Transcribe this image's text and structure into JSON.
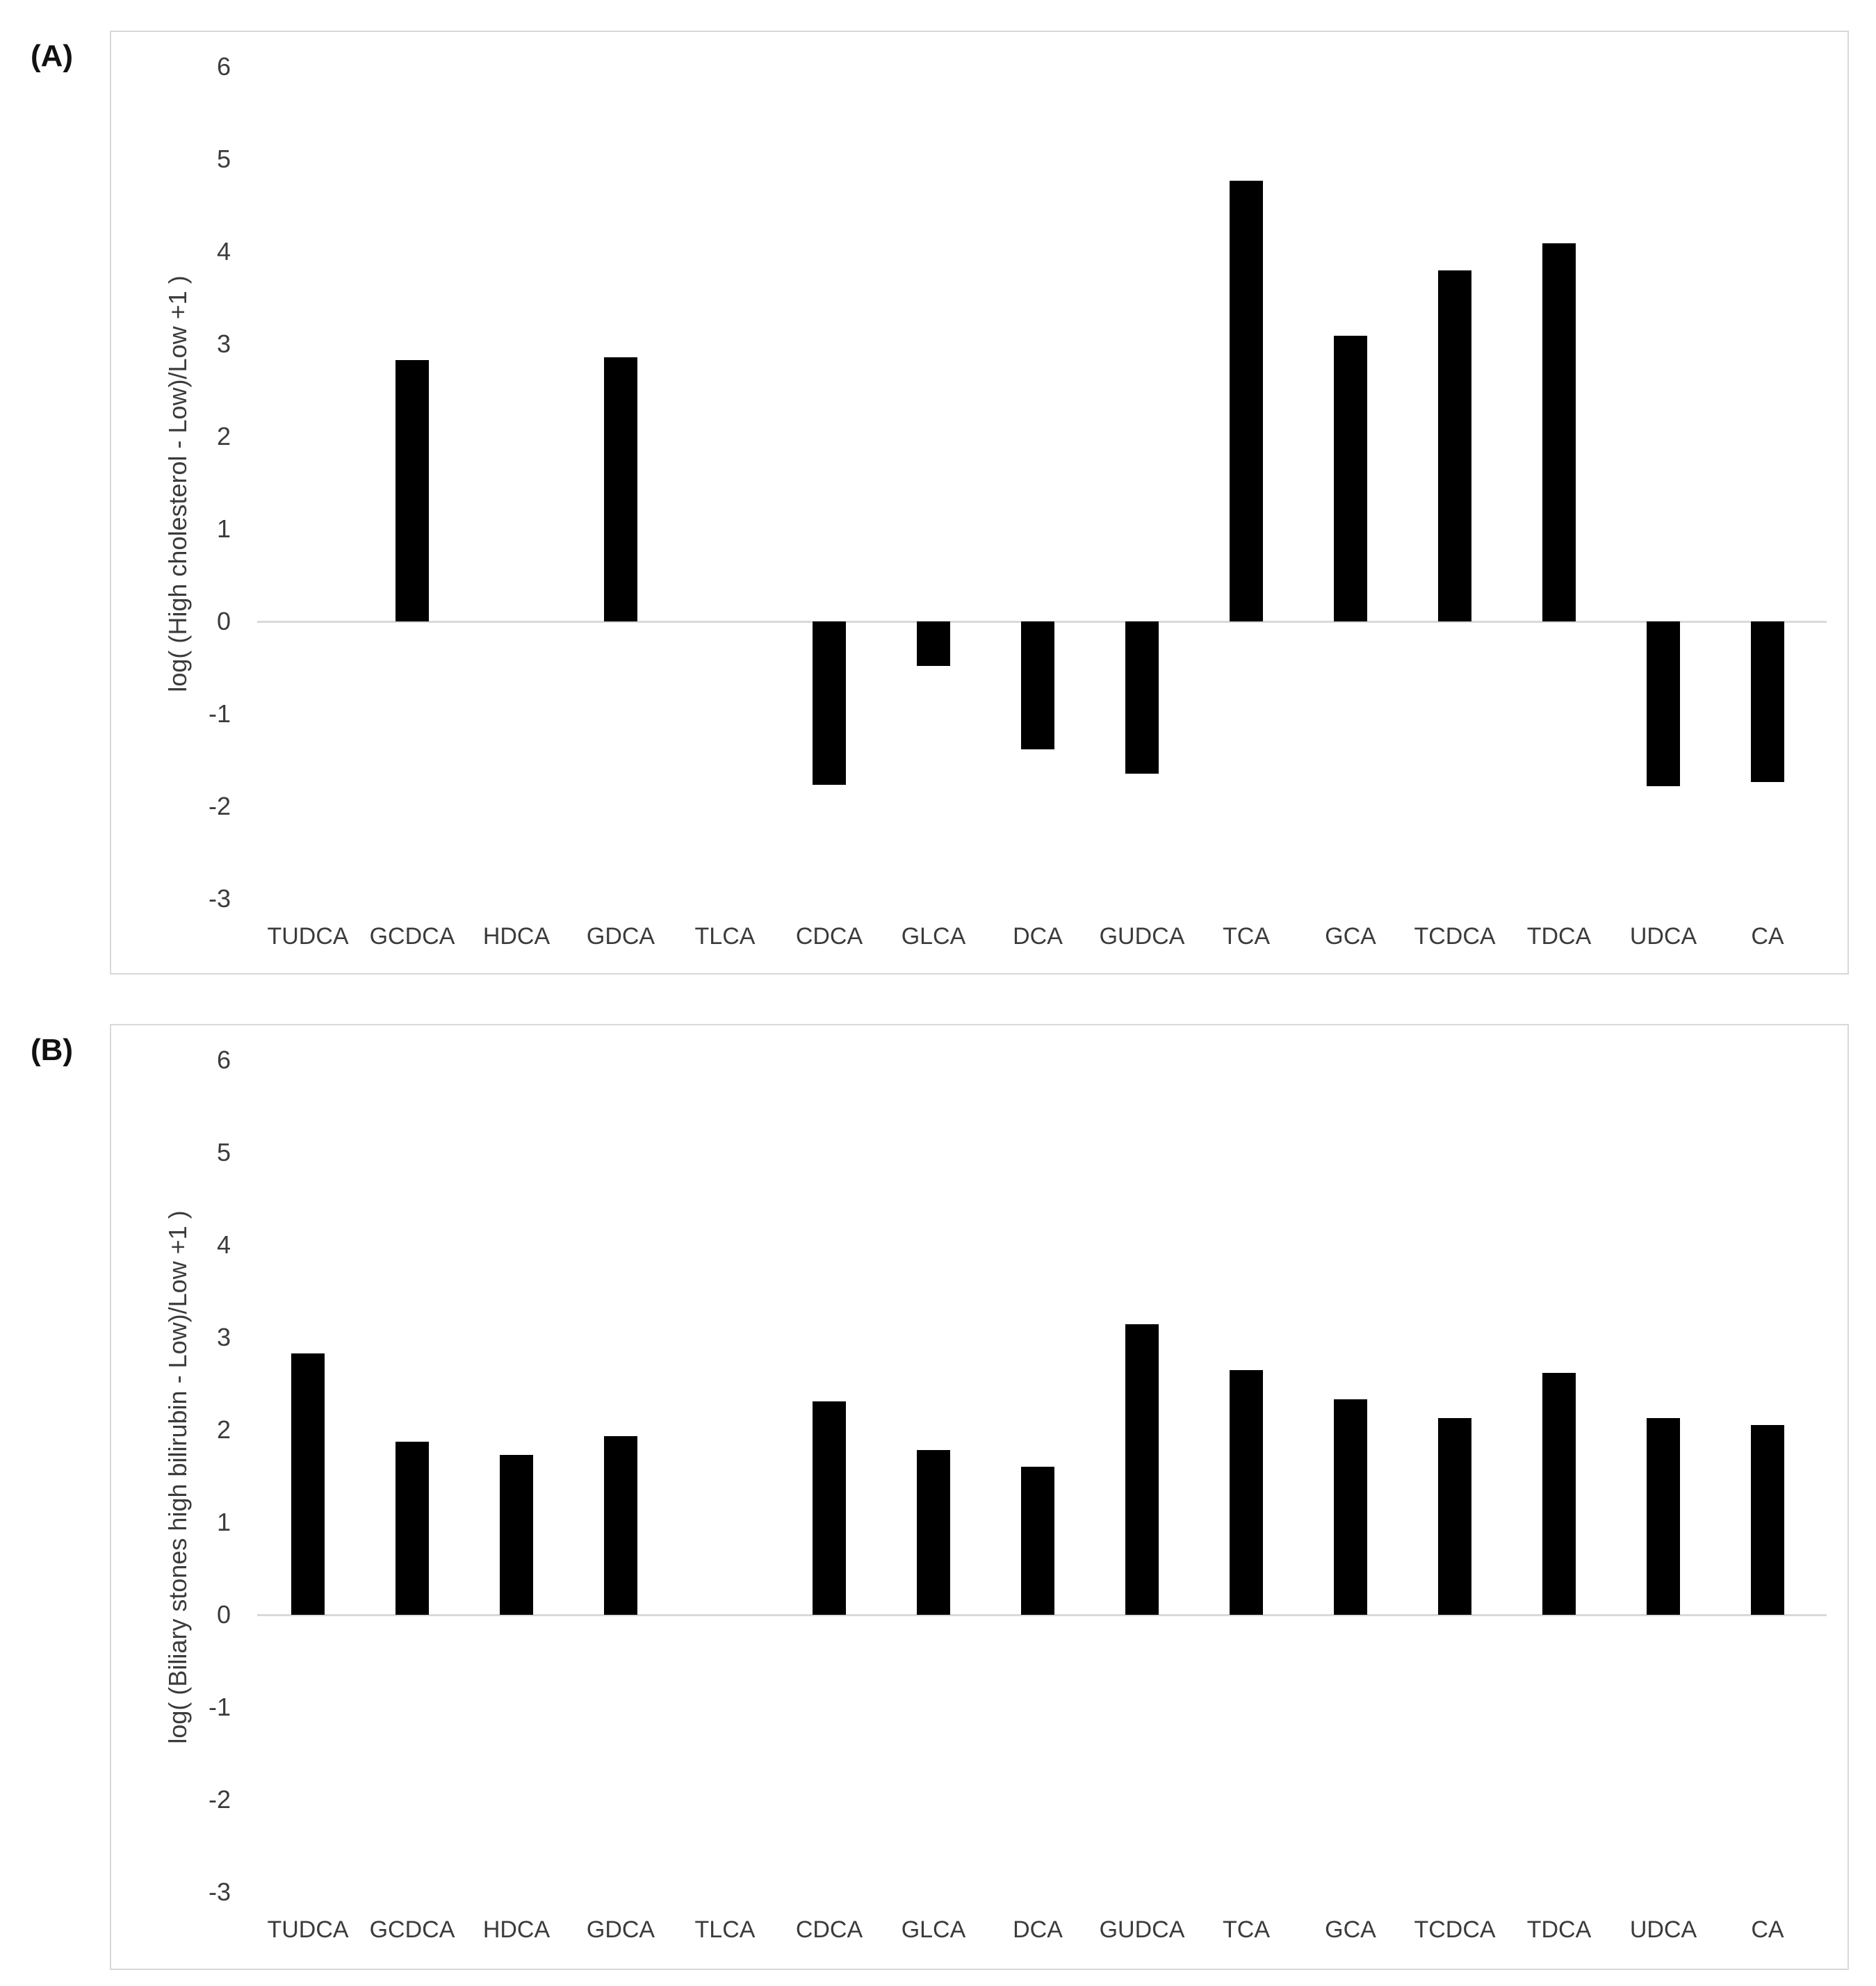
{
  "colors": {
    "bar": "#000000",
    "axis_text": "#3b3b3b",
    "panel_border": "#d9d9d9",
    "zero_line": "#d9d9d9",
    "background": "#ffffff",
    "panel_tag_text": "#111111"
  },
  "chart_data": [
    {
      "type": "bar",
      "panel_label": "(A)",
      "title": "",
      "xlabel": "",
      "ylabel": "log( (High cholesterol - Low)/Low +1 )",
      "ylim": [
        -3,
        6
      ],
      "yticks": [
        6,
        5,
        4,
        3,
        2,
        1,
        0,
        -1,
        -2,
        -3
      ],
      "grid": false,
      "zero_line": true,
      "legend": "none",
      "bar_color": "#000000",
      "categories": [
        "TUDCA",
        "GCDCA",
        "HDCA",
        "GDCA",
        "TLCA",
        "CDCA",
        "GLCA",
        "DCA",
        "GUDCA",
        "TCA",
        "GCA",
        "TCDCA",
        "TDCA",
        "UDCA",
        "CA"
      ],
      "values": [
        0,
        2.83,
        0,
        2.86,
        0,
        -1.77,
        -0.48,
        -1.38,
        -1.65,
        4.77,
        3.09,
        3.8,
        4.09,
        -1.78,
        -1.74
      ]
    },
    {
      "type": "bar",
      "panel_label": "(B)",
      "title": "",
      "xlabel": "",
      "ylabel": "log( (Biliary stones high bilirubin - Low)/Low +1 )",
      "ylim": [
        -3,
        6
      ],
      "yticks": [
        6,
        5,
        4,
        3,
        2,
        1,
        0,
        -1,
        -2,
        -3
      ],
      "grid": false,
      "zero_line": true,
      "legend": "none",
      "bar_color": "#000000",
      "categories": [
        "TUDCA",
        "GCDCA",
        "HDCA",
        "GDCA",
        "TLCA",
        "CDCA",
        "GLCA",
        "DCA",
        "GUDCA",
        "TCA",
        "GCA",
        "TCDCA",
        "TDCA",
        "UDCA",
        "CA"
      ],
      "values": [
        2.83,
        1.87,
        1.73,
        1.93,
        0,
        2.31,
        1.78,
        1.6,
        3.14,
        2.65,
        2.33,
        2.13,
        2.62,
        2.13,
        2.05
      ]
    }
  ]
}
